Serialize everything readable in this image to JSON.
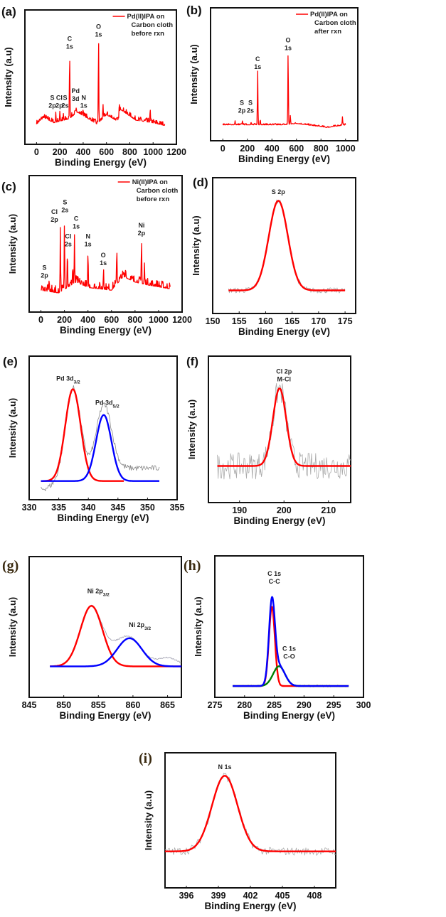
{
  "chart_data": [
    {
      "id": "a",
      "panel_label": "(a)",
      "type": "line",
      "kind": "survey",
      "xlabel": "Binding Energy (eV)",
      "ylabel": "Intensity (a.u)",
      "xlim": [
        -100,
        1200
      ],
      "ylim": [
        0,
        100
      ],
      "xticks": [
        0,
        200,
        400,
        600,
        800,
        1000,
        1200
      ],
      "legend": {
        "lines": [
          "Pd(II)IPA on",
          "Carbon cloth",
          "before rxn"
        ],
        "color": "#ff0000",
        "position": "top-right"
      },
      "series": [
        {
          "name": "Pd(II)IPA on Carbon cloth before rxn",
          "color": "#ff0000",
          "range": [
            0,
            1100
          ],
          "noise": 3,
          "baseline": [
            [
              0,
              15
            ],
            [
              60,
              20
            ],
            [
              150,
              16
            ],
            [
              280,
              19
            ],
            [
              350,
              24
            ],
            [
              520,
              15
            ],
            [
              600,
              22
            ],
            [
              700,
              17
            ],
            [
              720,
              26
            ],
            [
              850,
              18
            ],
            [
              1000,
              16
            ],
            [
              1100,
              14
            ]
          ],
          "peaks": [
            [
              165,
              24
            ],
            [
              200,
              25
            ],
            [
              230,
              23
            ],
            [
              284,
              70
            ],
            [
              340,
              27
            ],
            [
              400,
              26
            ],
            [
              532,
              79
            ],
            [
              570,
              30
            ],
            [
              710,
              31
            ],
            [
              975,
              27
            ]
          ]
        }
      ],
      "annotations": [
        {
          "x": 135,
          "y": 33,
          "lines": [
            "S",
            "2p"
          ]
        },
        {
          "x": 195,
          "y": 33,
          "lines": [
            "Cl",
            "2p"
          ]
        },
        {
          "x": 245,
          "y": 33,
          "lines": [
            "S",
            "2s"
          ]
        },
        {
          "x": 335,
          "y": 38,
          "lines": [
            "Pd",
            "3d"
          ]
        },
        {
          "x": 405,
          "y": 33,
          "lines": [
            "N",
            "1s"
          ]
        },
        {
          "x": 284,
          "y": 77,
          "lines": [
            "C",
            "1s"
          ]
        },
        {
          "x": 532,
          "y": 86,
          "lines": [
            "O",
            "1s"
          ]
        }
      ]
    },
    {
      "id": "b",
      "panel_label": "(b)",
      "type": "line",
      "kind": "survey",
      "xlabel": "Binding Energy (eV)",
      "ylabel": "Intensity (a.u)",
      "xlim": [
        -100,
        1100
      ],
      "ylim": [
        0,
        100
      ],
      "xticks": [
        0,
        200,
        400,
        600,
        800,
        1000
      ],
      "legend": {
        "lines": [
          "Pd(II)IPA on",
          "Carbon cloth",
          "after rxn"
        ],
        "color": "#ff0000",
        "position": "top-right"
      },
      "series": [
        {
          "name": "Pd(II)IPA on Carbon cloth after rxn",
          "color": "#ff0000",
          "range": [
            0,
            1000
          ],
          "noise": 1,
          "baseline": [
            [
              0,
              12
            ],
            [
              500,
              12
            ],
            [
              600,
              13
            ],
            [
              850,
              10
            ],
            [
              1000,
              12
            ]
          ],
          "peaks": [
            [
              100,
              15
            ],
            [
              160,
              15
            ],
            [
              230,
              14
            ],
            [
              284,
              53
            ],
            [
              305,
              16
            ],
            [
              532,
              67
            ],
            [
              550,
              19
            ],
            [
              975,
              18
            ]
          ]
        }
      ],
      "annotations": [
        {
          "x": 155,
          "y": 27,
          "lines": [
            "S",
            "2p"
          ]
        },
        {
          "x": 225,
          "y": 27,
          "lines": [
            "S",
            "2s"
          ]
        },
        {
          "x": 284,
          "y": 60,
          "lines": [
            "C",
            "1s"
          ]
        },
        {
          "x": 532,
          "y": 74,
          "lines": [
            "O",
            "1s"
          ]
        }
      ]
    },
    {
      "id": "c",
      "panel_label": "(c)",
      "type": "line",
      "kind": "survey",
      "xlabel": "Binding Energy (eV)",
      "ylabel": "Intensity (a.u)",
      "xlim": [
        -100,
        1200
      ],
      "ylim": [
        0,
        100
      ],
      "xticks": [
        0,
        200,
        400,
        600,
        800,
        1000,
        1200
      ],
      "legend": {
        "lines": [
          "Ni(II)IPA on",
          "Carbon cloth",
          "before rxn"
        ],
        "color": "#ff0000",
        "position": "top-right"
      },
      "series": [
        {
          "name": "Ni(II)IPA on Carbon cloth before rxn",
          "color": "#ff0000",
          "range": [
            0,
            1100
          ],
          "noise": 5,
          "baseline": [
            [
              0,
              16
            ],
            [
              150,
              14
            ],
            [
              300,
              22
            ],
            [
              400,
              18
            ],
            [
              600,
              16
            ],
            [
              700,
              26
            ],
            [
              800,
              22
            ],
            [
              900,
              20
            ],
            [
              1100,
              17
            ]
          ],
          "peaks": [
            [
              70,
              24
            ],
            [
              165,
              62
            ],
            [
              200,
              65
            ],
            [
              225,
              45
            ],
            [
              270,
              34
            ],
            [
              285,
              57
            ],
            [
              400,
              45
            ],
            [
              532,
              32
            ],
            [
              645,
              47
            ],
            [
              720,
              32
            ],
            [
              855,
              53
            ],
            [
              880,
              36
            ]
          ]
        }
      ],
      "annotations": [
        {
          "x": 30,
          "y": 31,
          "lines": [
            "S",
            "2p"
          ]
        },
        {
          "x": 115,
          "y": 72,
          "lines": [
            "Cl",
            "2p"
          ]
        },
        {
          "x": 205,
          "y": 79,
          "lines": [
            "S",
            "2s"
          ]
        },
        {
          "x": 232,
          "y": 54,
          "lines": [
            "Cl",
            "2s"
          ]
        },
        {
          "x": 300,
          "y": 67,
          "lines": [
            "C",
            "1s"
          ]
        },
        {
          "x": 400,
          "y": 54,
          "lines": [
            "N",
            "1s"
          ]
        },
        {
          "x": 530,
          "y": 40,
          "lines": [
            "O",
            "1s"
          ]
        },
        {
          "x": 855,
          "y": 62,
          "lines": [
            "Ni",
            "2p"
          ]
        }
      ]
    },
    {
      "id": "d",
      "panel_label": "(d)",
      "type": "line",
      "kind": "fit",
      "xlabel": "Binding Energy (eV)",
      "ylabel": "Intensity (a.u)",
      "xlim": [
        150,
        177
      ],
      "ylim": [
        0,
        100
      ],
      "xticks": [
        150,
        155,
        160,
        165,
        170,
        175
      ],
      "raw": {
        "range": [
          153,
          175
        ],
        "noise": 2,
        "color": "#aaaaaa"
      },
      "baseline": 17,
      "fit_range": [
        153,
        175
      ],
      "components": [
        {
          "name": "S 2p",
          "center": 162.4,
          "height": 83,
          "sigma": 1.8,
          "color": "#ff0000"
        }
      ],
      "annotations": [
        {
          "x": 162.4,
          "y": 88,
          "lines": [
            "S 2p"
          ]
        }
      ]
    },
    {
      "id": "e",
      "panel_label": "(e)",
      "type": "line",
      "kind": "fit",
      "xlabel": "Binding Energy (eV)",
      "ylabel": "Intensity (a.u)",
      "xlim": [
        330,
        355
      ],
      "ylim": [
        0,
        100
      ],
      "xticks": [
        330,
        335,
        340,
        345,
        350,
        355
      ],
      "raw": {
        "range": [
          332,
          352
        ],
        "noise": 2,
        "color": "#888888",
        "background": [
          [
            332,
            7
          ],
          [
            336,
            12
          ],
          [
            341,
            18
          ],
          [
            344,
            22
          ],
          [
            352,
            22
          ]
        ]
      },
      "baseline": 13,
      "fit_range": [
        332,
        352
      ],
      "components": [
        {
          "name": "Pd 3d3/2",
          "center": 337.4,
          "height": 77,
          "sigma": 1.3,
          "color": "#ff0000",
          "range": [
            332,
            346
          ]
        },
        {
          "name": "Pd 3d5/2",
          "center": 342.6,
          "height": 59,
          "sigma": 1.3,
          "color": "#0000ff",
          "range": [
            332,
            352
          ]
        }
      ],
      "annotations": [
        {
          "x": 336.6,
          "y": 83,
          "lines": [
            "Pd 3d"
          ],
          "sub": "3/2"
        },
        {
          "x": 343.2,
          "y": 66,
          "lines": [
            "Pd 3d"
          ],
          "sub": "5/2"
        }
      ]
    },
    {
      "id": "f",
      "panel_label": "(f)",
      "type": "line",
      "kind": "fit",
      "xlabel": "Binding Energy (eV)",
      "ylabel": "Intensity (a.u)",
      "xlim": [
        183,
        215
      ],
      "ylim": [
        0,
        100
      ],
      "xticks": [
        190,
        200,
        210
      ],
      "raw": {
        "range": [
          185,
          215
        ],
        "noise": 9,
        "color": "#aaaaaa"
      },
      "baseline": 25,
      "fit_range": [
        185,
        215
      ],
      "components": [
        {
          "name": "Cl 2p M-Cl",
          "center": 199,
          "height": 78,
          "sigma": 1.5,
          "color": "#ff0000"
        }
      ],
      "annotations": [
        {
          "x": 200,
          "y": 88,
          "lines": [
            "Cl 2p",
            "M-Cl"
          ]
        }
      ]
    },
    {
      "id": "g",
      "panel_label": "(g)",
      "type": "line",
      "kind": "fit",
      "xlabel": "Binding Energy (eV)",
      "ylabel": "Intensity (a.u)",
      "xlim": [
        845,
        867
      ],
      "ylim": [
        0,
        100
      ],
      "xticks": [
        845,
        850,
        855,
        860,
        865
      ],
      "raw": {
        "range": [
          850.5,
          867
        ],
        "noise": 0.5,
        "color": "#9999aa",
        "extra": [
          [
            865,
            6,
            1.5
          ]
        ]
      },
      "baseline": 22,
      "fit_range": [
        848,
        867
      ],
      "components": [
        {
          "name": "Ni 2p3/2",
          "center": 854,
          "height": 65,
          "sigma": 1.6,
          "color": "#ff0000"
        },
        {
          "name": "Ni 2p3/2",
          "center": 859.5,
          "height": 42,
          "sigma": 1.8,
          "color": "#0000ff"
        }
      ],
      "annotations": [
        {
          "x": 855,
          "y": 74,
          "lines": [
            "Ni 2p"
          ],
          "sub": "3/2"
        },
        {
          "x": 861,
          "y": 50,
          "lines": [
            "Ni 2p"
          ],
          "sub": "3/2"
        }
      ]
    },
    {
      "id": "h",
      "panel_label": "(h)",
      "type": "line",
      "kind": "fit",
      "xlabel": "Binding Energy (eV)",
      "ylabel": "Intensity (a.u)",
      "xlim": [
        275,
        300
      ],
      "ylim": [
        0,
        100
      ],
      "xticks": [
        275,
        280,
        285,
        290,
        295,
        300
      ],
      "raw": {
        "range": [
          278,
          297.5
        ],
        "noise": 0.8,
        "color": "#999999"
      },
      "baseline": 8,
      "fit_range": [
        278,
        297.5
      ],
      "envelope_color": "#0000ff",
      "components": [
        {
          "name": "C 1s C-C",
          "center": 284.6,
          "height": 64,
          "sigma": 0.5,
          "color": "#ff0000"
        },
        {
          "name": "C 1s C-O",
          "center": 285.8,
          "height": 22,
          "sigma": 1.0,
          "color": "#008000"
        }
      ],
      "annotations": [
        {
          "x": 285,
          "y": 86,
          "lines": [
            "C 1s",
            "C-C"
          ]
        },
        {
          "x": 287.5,
          "y": 33,
          "lines": [
            "C 1s",
            "C-O"
          ]
        }
      ]
    },
    {
      "id": "i",
      "panel_label": "(i)",
      "type": "line",
      "kind": "fit",
      "xlabel": "Binding Energy (eV)",
      "ylabel": "Intensity (a.u)",
      "xlim": [
        394,
        410
      ],
      "ylim": [
        0,
        100
      ],
      "xticks": [
        396,
        399,
        402,
        405,
        408
      ],
      "raw": {
        "range": [
          394,
          410
        ],
        "noise": 3,
        "color": "#aaaaaa"
      },
      "baseline": 27,
      "fit_range": [
        394,
        410
      ],
      "components": [
        {
          "name": "N 1s",
          "center": 399.6,
          "height": 83,
          "sigma": 1.2,
          "color": "#ff0000"
        }
      ],
      "annotations": [
        {
          "x": 399.6,
          "y": 88,
          "lines": [
            "N 1s"
          ]
        }
      ]
    }
  ]
}
